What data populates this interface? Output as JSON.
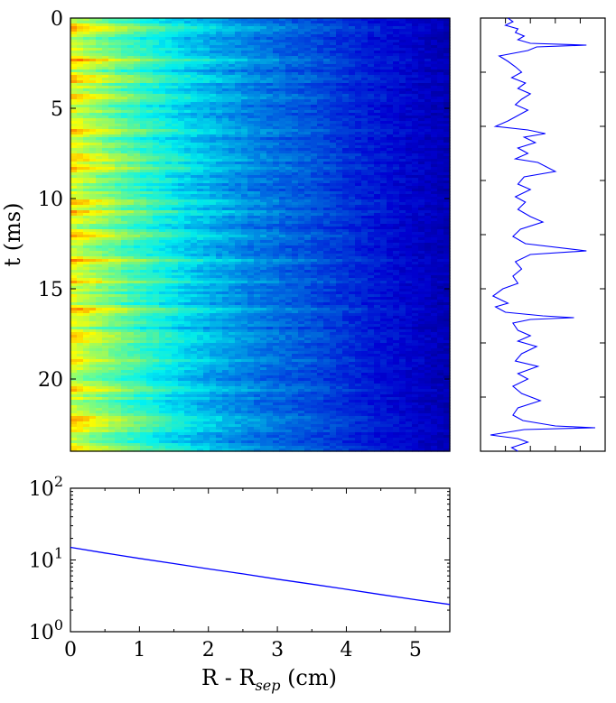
{
  "chart_data": [
    {
      "id": "heatmap",
      "type": "heatmap",
      "xlim": [
        0,
        5.5
      ],
      "ylim": [
        0,
        24
      ],
      "y_inverted": true,
      "yticks": [
        0,
        5,
        10,
        15,
        20
      ],
      "yticklabels": [
        "0",
        "5",
        "10",
        "15",
        "20"
      ],
      "ylabel": "t (ms)",
      "colormap": "jet",
      "grid": false,
      "bright_bands_t": [
        0.6,
        2.3,
        3.4,
        4.4,
        6.2,
        7.7,
        8.3,
        10.2,
        10.8,
        12.0,
        13.4,
        14.6,
        16.2,
        17.7,
        19.0,
        20.6,
        22.1,
        22.6,
        23.9
      ]
    },
    {
      "id": "timeseries",
      "type": "line",
      "orientation": "vertical",
      "ylim": [
        0,
        24
      ],
      "y_inverted": true,
      "xlim": [
        0,
        1
      ],
      "yticks": [
        0,
        3,
        6,
        9,
        12,
        15,
        18,
        21,
        24
      ],
      "ticklabels_shown": false,
      "color": "#0000ff",
      "series": [
        {
          "points": [
            [
              0.22,
              0.0
            ],
            [
              0.26,
              0.2
            ],
            [
              0.2,
              0.4
            ],
            [
              0.3,
              0.6
            ],
            [
              0.28,
              0.8
            ],
            [
              0.35,
              1.0
            ],
            [
              0.3,
              1.2
            ],
            [
              0.4,
              1.4
            ],
            [
              0.85,
              1.5
            ],
            [
              0.45,
              1.6
            ],
            [
              0.38,
              1.8
            ],
            [
              0.15,
              2.1
            ],
            [
              0.22,
              2.4
            ],
            [
              0.28,
              2.7
            ],
            [
              0.33,
              3.0
            ],
            [
              0.25,
              3.3
            ],
            [
              0.36,
              3.6
            ],
            [
              0.3,
              3.9
            ],
            [
              0.4,
              4.2
            ],
            [
              0.33,
              4.5
            ],
            [
              0.28,
              4.8
            ],
            [
              0.38,
              5.1
            ],
            [
              0.3,
              5.4
            ],
            [
              0.22,
              5.7
            ],
            [
              0.12,
              6.0
            ],
            [
              0.38,
              6.2
            ],
            [
              0.52,
              6.4
            ],
            [
              0.35,
              6.6
            ],
            [
              0.44,
              6.9
            ],
            [
              0.3,
              7.2
            ],
            [
              0.38,
              7.5
            ],
            [
              0.28,
              7.8
            ],
            [
              0.46,
              8.0
            ],
            [
              0.6,
              8.5
            ],
            [
              0.35,
              8.8
            ],
            [
              0.3,
              9.2
            ],
            [
              0.4,
              9.5
            ],
            [
              0.28,
              9.9
            ],
            [
              0.36,
              10.2
            ],
            [
              0.3,
              10.6
            ],
            [
              0.4,
              11.0
            ],
            [
              0.5,
              11.3
            ],
            [
              0.32,
              11.7
            ],
            [
              0.26,
              12.1
            ],
            [
              0.36,
              12.5
            ],
            [
              0.85,
              12.9
            ],
            [
              0.4,
              13.1
            ],
            [
              0.28,
              13.5
            ],
            [
              0.33,
              13.9
            ],
            [
              0.26,
              14.3
            ],
            [
              0.3,
              14.7
            ],
            [
              0.18,
              15.0
            ],
            [
              0.1,
              15.4
            ],
            [
              0.22,
              15.8
            ],
            [
              0.12,
              16.0
            ],
            [
              0.2,
              16.3
            ],
            [
              0.5,
              16.5
            ],
            [
              0.75,
              16.6
            ],
            [
              0.4,
              16.7
            ],
            [
              0.26,
              16.9
            ],
            [
              0.3,
              17.3
            ],
            [
              0.4,
              17.6
            ],
            [
              0.3,
              17.9
            ],
            [
              0.45,
              18.2
            ],
            [
              0.33,
              18.6
            ],
            [
              0.28,
              19.0
            ],
            [
              0.46,
              19.3
            ],
            [
              0.3,
              19.7
            ],
            [
              0.38,
              20.0
            ],
            [
              0.26,
              20.4
            ],
            [
              0.33,
              20.8
            ],
            [
              0.48,
              21.2
            ],
            [
              0.3,
              21.6
            ],
            [
              0.26,
              22.0
            ],
            [
              0.34,
              22.3
            ],
            [
              0.6,
              22.6
            ],
            [
              0.92,
              22.7
            ],
            [
              0.35,
              22.8
            ],
            [
              0.08,
              23.1
            ],
            [
              0.3,
              23.3
            ],
            [
              0.38,
              23.5
            ],
            [
              0.25,
              23.8
            ],
            [
              0.3,
              24.0
            ]
          ]
        }
      ]
    },
    {
      "id": "profile",
      "type": "line",
      "x": [
        0,
        0.5,
        1,
        1.5,
        2,
        2.5,
        3,
        3.5,
        4,
        4.5,
        5,
        5.5
      ],
      "y": [
        15,
        12.5,
        10.5,
        8.9,
        7.5,
        6.4,
        5.4,
        4.6,
        3.9,
        3.3,
        2.8,
        2.4
      ],
      "xlim": [
        0,
        5.5
      ],
      "ylim": [
        1,
        100
      ],
      "yscale": "log",
      "xticks": [
        0,
        1,
        2,
        3,
        4,
        5
      ],
      "xticklabels": [
        "0",
        "1",
        "2",
        "3",
        "4",
        "5"
      ],
      "yticks": [
        1,
        10,
        100
      ],
      "ytick_base": "10",
      "ytick_exponents": [
        "0",
        "1",
        "2"
      ],
      "xlabel_main": "R - R",
      "xlabel_sub": "sep",
      "xlabel_tail": " (cm)",
      "color": "#0000ff",
      "grid": false
    }
  ]
}
